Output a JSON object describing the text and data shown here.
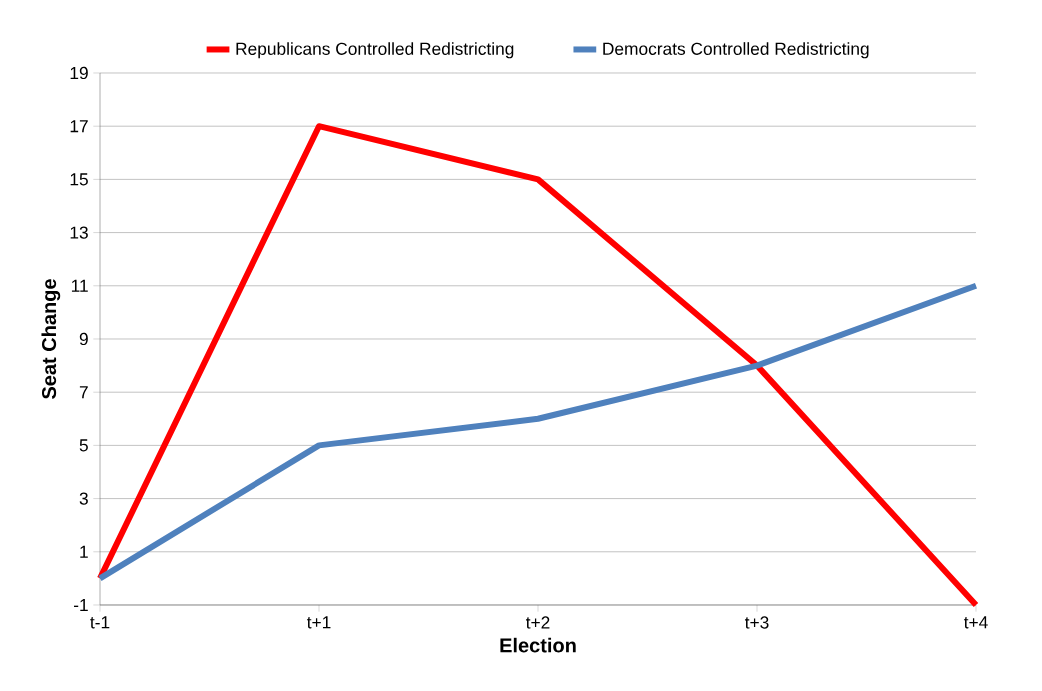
{
  "chart_data": {
    "type": "line",
    "xlabel": "Election",
    "ylabel": "Seat Change",
    "categories": [
      "t-1",
      "t+1",
      "t+2",
      "t+3",
      "t+4"
    ],
    "series": [
      {
        "name": "Republicans Controlled Redistricting",
        "color": "#ff0000",
        "values": [
          0,
          17,
          15,
          8,
          -1
        ]
      },
      {
        "name": "Democrats Controlled Redistricting",
        "color": "#4f81bd",
        "values": [
          0,
          5,
          6,
          8,
          11
        ]
      }
    ],
    "ylim": [
      -1,
      19
    ],
    "yticks": [
      -1,
      1,
      3,
      5,
      7,
      9,
      11,
      13,
      15,
      17,
      19
    ],
    "grid": "y",
    "legend": "top"
  }
}
